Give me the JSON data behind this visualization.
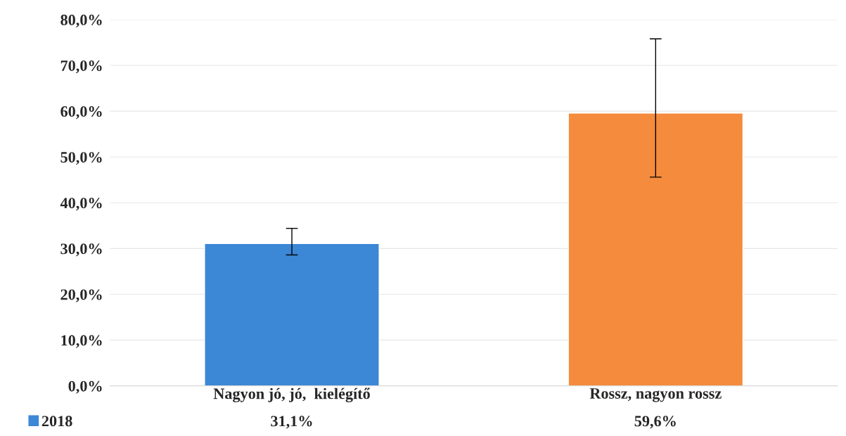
{
  "chart_data": {
    "type": "bar",
    "categories": [
      "Nagyon jó, jó,  kielégítő",
      "Rossz, nagyon rossz"
    ],
    "series": [
      {
        "name": "2018",
        "color": "#3c87d6",
        "colors": [
          "#3c87d6",
          "#f58b3c"
        ],
        "values": [
          31.1,
          59.6
        ],
        "errors": [
          [
            28.6,
            34.4
          ],
          [
            45.6,
            75.8
          ]
        ],
        "value_labels": [
          "31,1%",
          "59,6%"
        ]
      }
    ],
    "ylim": [
      0,
      80
    ],
    "yticks": [
      {
        "value": 0,
        "label": "0,0%"
      },
      {
        "value": 10,
        "label": "10,0%"
      },
      {
        "value": 20,
        "label": "20,0%"
      },
      {
        "value": 30,
        "label": "30,0%"
      },
      {
        "value": 40,
        "label": "40,0%"
      },
      {
        "value": 50,
        "label": "50,0%"
      },
      {
        "value": 60,
        "label": "60,0%"
      },
      {
        "value": 70,
        "label": "70,0%"
      },
      {
        "value": 80,
        "label": "80,0%"
      }
    ],
    "grid": "y",
    "legend": "bottom left"
  }
}
